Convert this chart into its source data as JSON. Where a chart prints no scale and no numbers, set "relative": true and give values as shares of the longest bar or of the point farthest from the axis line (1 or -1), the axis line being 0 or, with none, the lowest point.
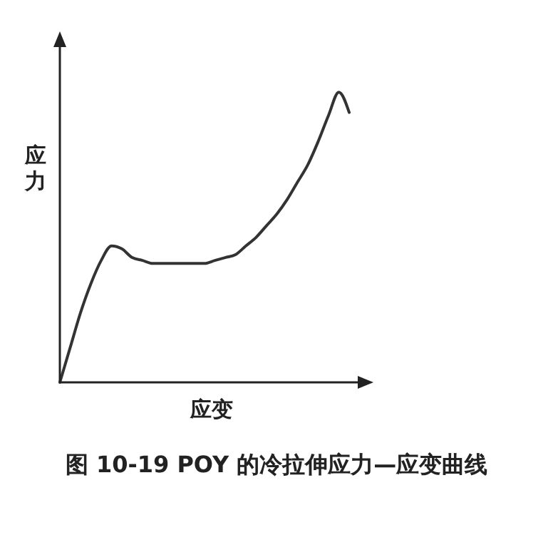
{
  "chart_data": {
    "type": "line",
    "title": "图 10-19 POY 的冷拉伸应力—应变曲线",
    "xlabel": "应变",
    "ylabel": "应力",
    "relative": true,
    "color": "#333333",
    "categories": [
      null,
      null,
      null,
      null,
      null,
      null,
      null,
      null,
      null,
      null,
      null,
      null,
      null,
      null,
      null,
      null,
      null,
      null,
      null,
      null,
      null,
      null,
      null,
      null,
      null,
      null,
      null,
      null,
      null
    ],
    "values": [
      0,
      0.12,
      0.24,
      0.34,
      0.42,
      0.47,
      0.46,
      0.43,
      0.42,
      0.41,
      0.41,
      0.41,
      0.41,
      0.41,
      0.41,
      0.42,
      0.43,
      0.44,
      0.47,
      0.5,
      0.54,
      0.58,
      0.63,
      0.69,
      0.75,
      0.83,
      0.92,
      1,
      0.93
    ]
  }
}
